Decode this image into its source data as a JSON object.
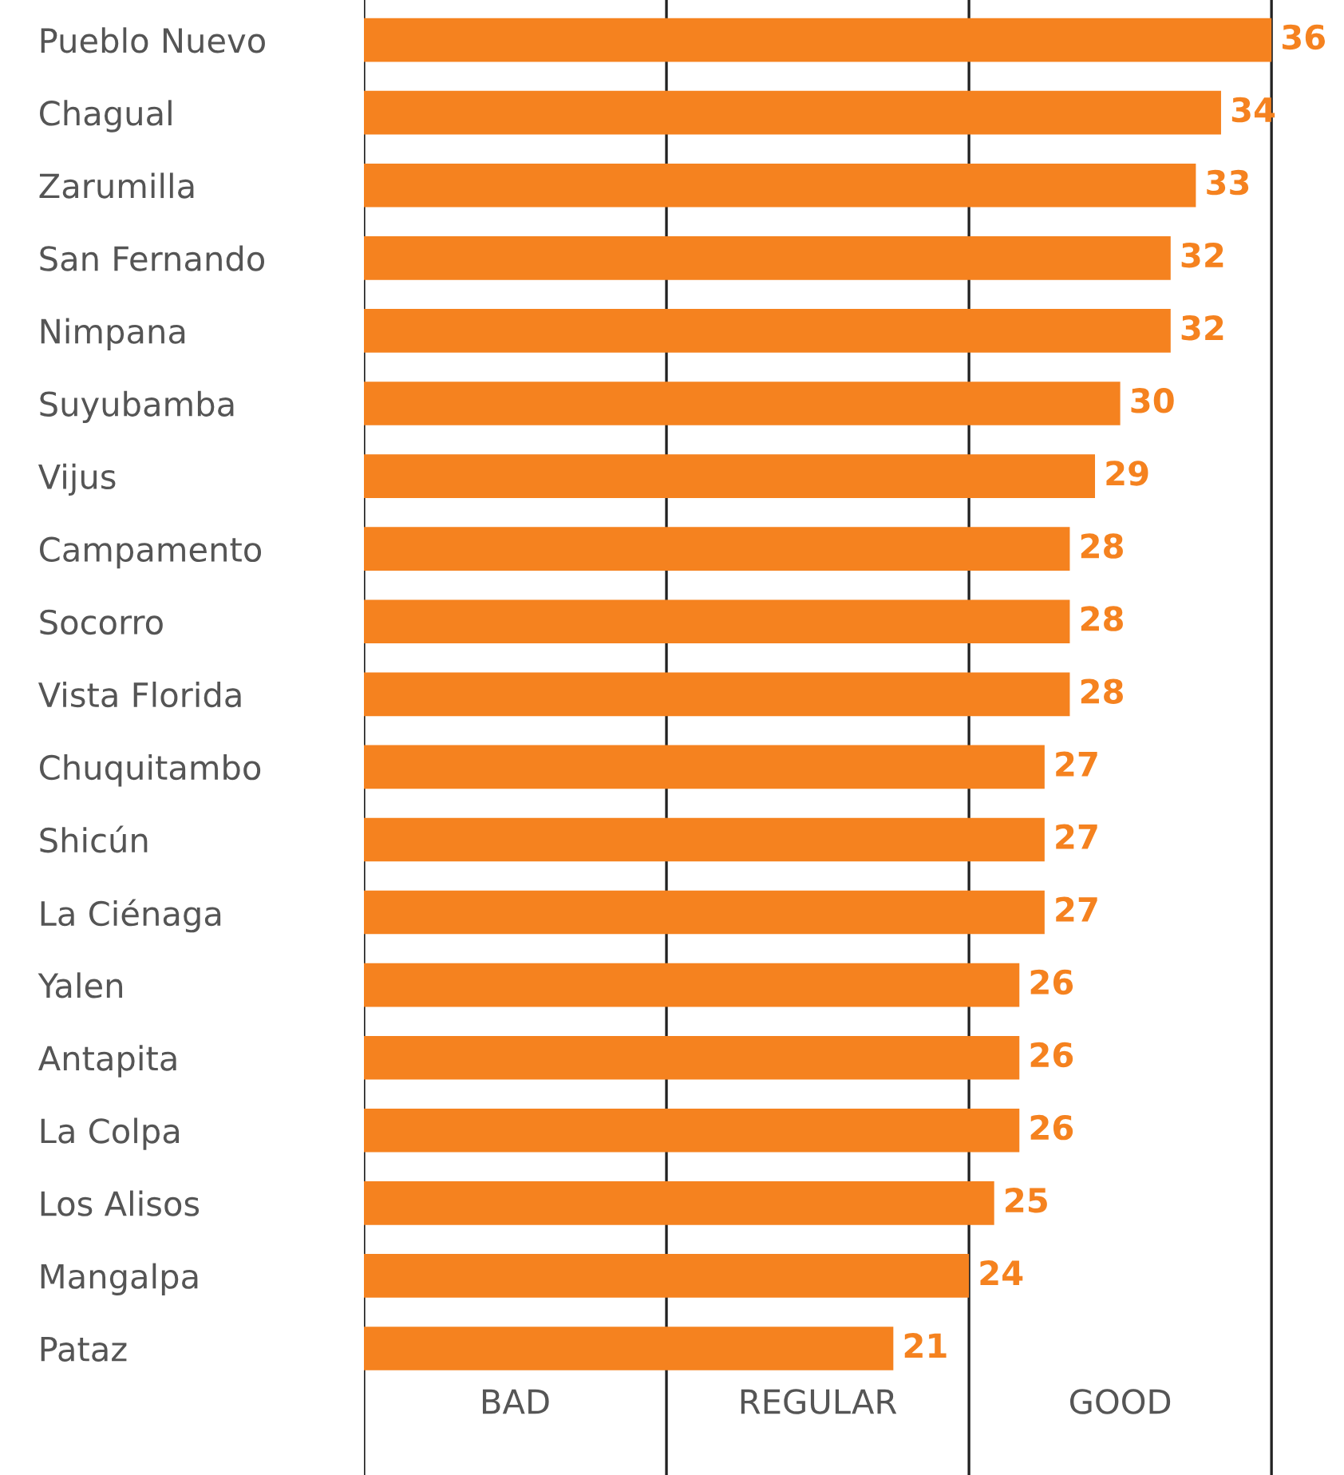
{
  "chart_data": {
    "type": "bar",
    "orientation": "horizontal",
    "categories": [
      "Pueblo Nuevo",
      "Chagual",
      "Zarumilla",
      "San Fernando",
      "Nimpana",
      "Suyubamba",
      "Vijus",
      "Campamento",
      "Socorro",
      "Vista Florida",
      "Chuquitambo",
      "Shicún",
      "La Ciénaga",
      "Yalen",
      "Antapita",
      "La Colpa",
      "Los Alisos",
      "Mangalpa",
      "Pataz"
    ],
    "values": [
      36,
      34,
      33,
      32,
      32,
      30,
      29,
      28,
      28,
      28,
      27,
      27,
      27,
      26,
      26,
      26,
      25,
      24,
      21
    ],
    "color": "#f5821f",
    "data_labels": true,
    "tick_labels": "y",
    "grid": false,
    "ref_lines": [
      {
        "axis": "x",
        "value": 0
      },
      {
        "axis": "x",
        "value": 12
      },
      {
        "axis": "x",
        "value": 24
      },
      {
        "axis": "x",
        "value": 36
      }
    ],
    "annotations": [
      "BAD",
      "REGULAR",
      "GOOD"
    ]
  }
}
